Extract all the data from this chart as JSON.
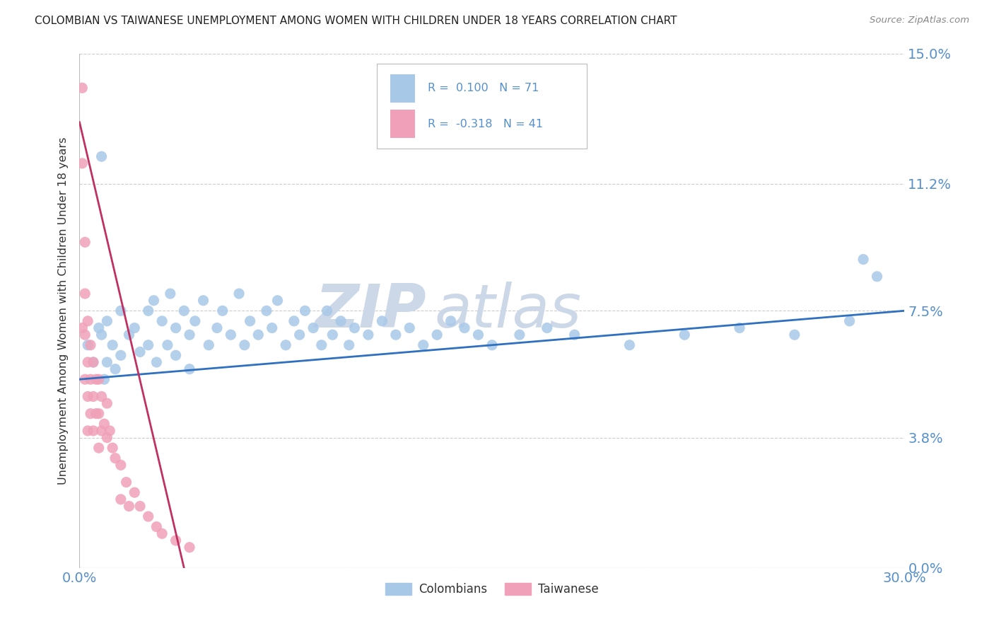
{
  "title": "COLOMBIAN VS TAIWANESE UNEMPLOYMENT AMONG WOMEN WITH CHILDREN UNDER 18 YEARS CORRELATION CHART",
  "source": "Source: ZipAtlas.com",
  "ylabel": "Unemployment Among Women with Children Under 18 years",
  "xlim": [
    0.0,
    0.3
  ],
  "ylim": [
    0.0,
    0.15
  ],
  "ytick_values": [
    0.0,
    0.038,
    0.075,
    0.112,
    0.15
  ],
  "ytick_labels": [
    "0.0%",
    "3.8%",
    "7.5%",
    "11.2%",
    "15.0%"
  ],
  "colombian_R": 0.1,
  "colombian_N": 71,
  "taiwanese_R": -0.318,
  "taiwanese_N": 41,
  "colombian_color": "#a8c8e8",
  "taiwanese_color": "#f0a0b8",
  "colombian_line_color": "#3070c0",
  "taiwanese_line_color": "#c03060",
  "background_color": "#ffffff",
  "grid_color": "#cccccc",
  "axis_color": "#5590cc",
  "title_color": "#222222",
  "watermark_color": "#ccd8e8",
  "legend_label_colombian": "Colombians",
  "legend_label_taiwanese": "Taiwanese",
  "colombian_x": [
    0.003,
    0.005,
    0.007,
    0.008,
    0.009,
    0.01,
    0.01,
    0.012,
    0.013,
    0.015,
    0.015,
    0.018,
    0.02,
    0.022,
    0.025,
    0.025,
    0.027,
    0.028,
    0.03,
    0.032,
    0.033,
    0.035,
    0.035,
    0.038,
    0.04,
    0.04,
    0.042,
    0.045,
    0.047,
    0.05,
    0.052,
    0.055,
    0.058,
    0.06,
    0.062,
    0.065,
    0.068,
    0.07,
    0.072,
    0.075,
    0.078,
    0.08,
    0.082,
    0.085,
    0.088,
    0.09,
    0.092,
    0.095,
    0.098,
    0.1,
    0.105,
    0.11,
    0.115,
    0.12,
    0.125,
    0.13,
    0.135,
    0.14,
    0.145,
    0.15,
    0.16,
    0.17,
    0.18,
    0.2,
    0.22,
    0.24,
    0.26,
    0.28,
    0.285,
    0.008,
    0.29
  ],
  "colombian_y": [
    0.065,
    0.06,
    0.07,
    0.068,
    0.055,
    0.072,
    0.06,
    0.065,
    0.058,
    0.075,
    0.062,
    0.068,
    0.07,
    0.063,
    0.075,
    0.065,
    0.078,
    0.06,
    0.072,
    0.065,
    0.08,
    0.07,
    0.062,
    0.075,
    0.068,
    0.058,
    0.072,
    0.078,
    0.065,
    0.07,
    0.075,
    0.068,
    0.08,
    0.065,
    0.072,
    0.068,
    0.075,
    0.07,
    0.078,
    0.065,
    0.072,
    0.068,
    0.075,
    0.07,
    0.065,
    0.075,
    0.068,
    0.072,
    0.065,
    0.07,
    0.068,
    0.072,
    0.068,
    0.07,
    0.065,
    0.068,
    0.072,
    0.07,
    0.068,
    0.065,
    0.068,
    0.07,
    0.068,
    0.065,
    0.068,
    0.07,
    0.068,
    0.072,
    0.09,
    0.12,
    0.085
  ],
  "taiwanese_x": [
    0.001,
    0.001,
    0.001,
    0.002,
    0.002,
    0.002,
    0.002,
    0.003,
    0.003,
    0.003,
    0.003,
    0.004,
    0.004,
    0.004,
    0.005,
    0.005,
    0.005,
    0.006,
    0.006,
    0.007,
    0.007,
    0.007,
    0.008,
    0.008,
    0.009,
    0.01,
    0.01,
    0.011,
    0.012,
    0.013,
    0.015,
    0.015,
    0.017,
    0.018,
    0.02,
    0.022,
    0.025,
    0.028,
    0.03,
    0.035,
    0.04
  ],
  "taiwanese_y": [
    0.14,
    0.118,
    0.07,
    0.095,
    0.08,
    0.068,
    0.055,
    0.072,
    0.06,
    0.05,
    0.04,
    0.065,
    0.055,
    0.045,
    0.06,
    0.05,
    0.04,
    0.055,
    0.045,
    0.055,
    0.045,
    0.035,
    0.05,
    0.04,
    0.042,
    0.048,
    0.038,
    0.04,
    0.035,
    0.032,
    0.03,
    0.02,
    0.025,
    0.018,
    0.022,
    0.018,
    0.015,
    0.012,
    0.01,
    0.008,
    0.006
  ]
}
